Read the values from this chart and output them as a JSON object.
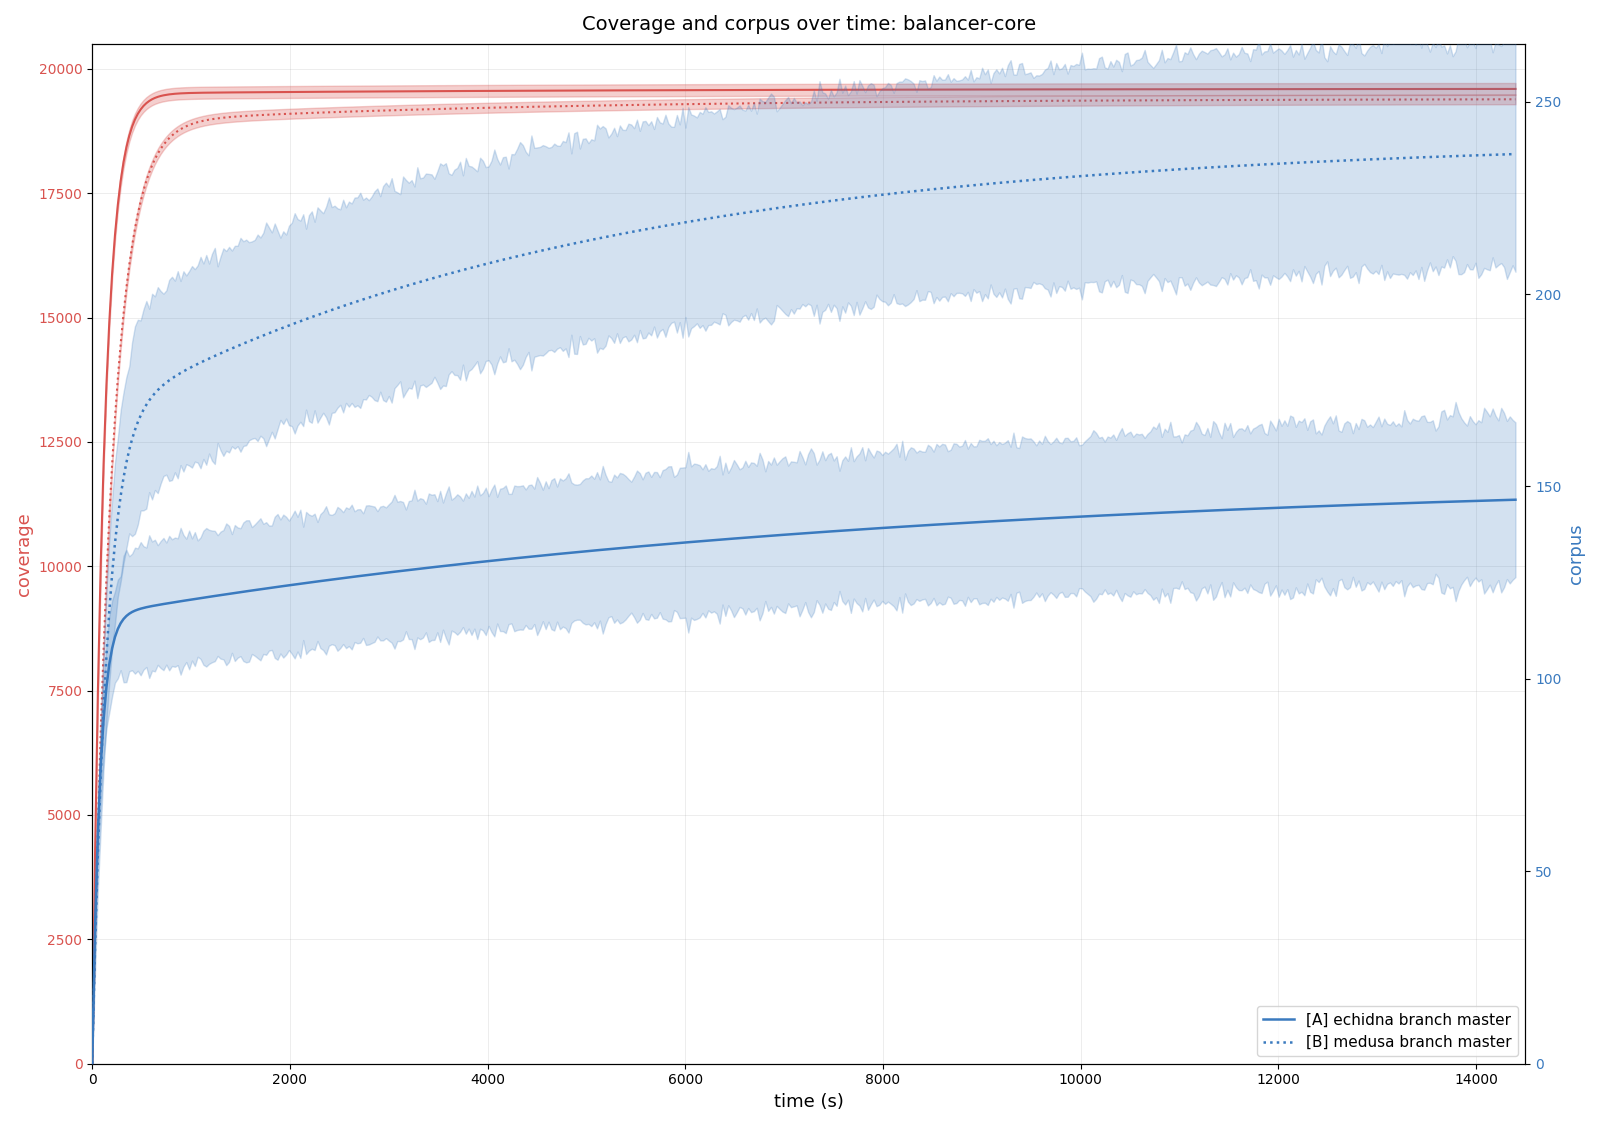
{
  "title": "Coverage and corpus over time: balancer-core",
  "xlabel": "time (s)",
  "ylabel_left": "coverage",
  "ylabel_right": "corpus",
  "xlim": [
    0,
    14500
  ],
  "ylim_left": [
    0,
    20500
  ],
  "ylim_right": [
    0,
    265
  ],
  "legend_labels": [
    "[A] echidna branch master",
    "[B] medusa branch master"
  ],
  "color_cov": "#d9534f",
  "color_corpus": "#3a7abf",
  "fill_alpha_cov": 0.28,
  "fill_alpha_corpus": 0.22,
  "t_max": 14400,
  "n_points": 500
}
